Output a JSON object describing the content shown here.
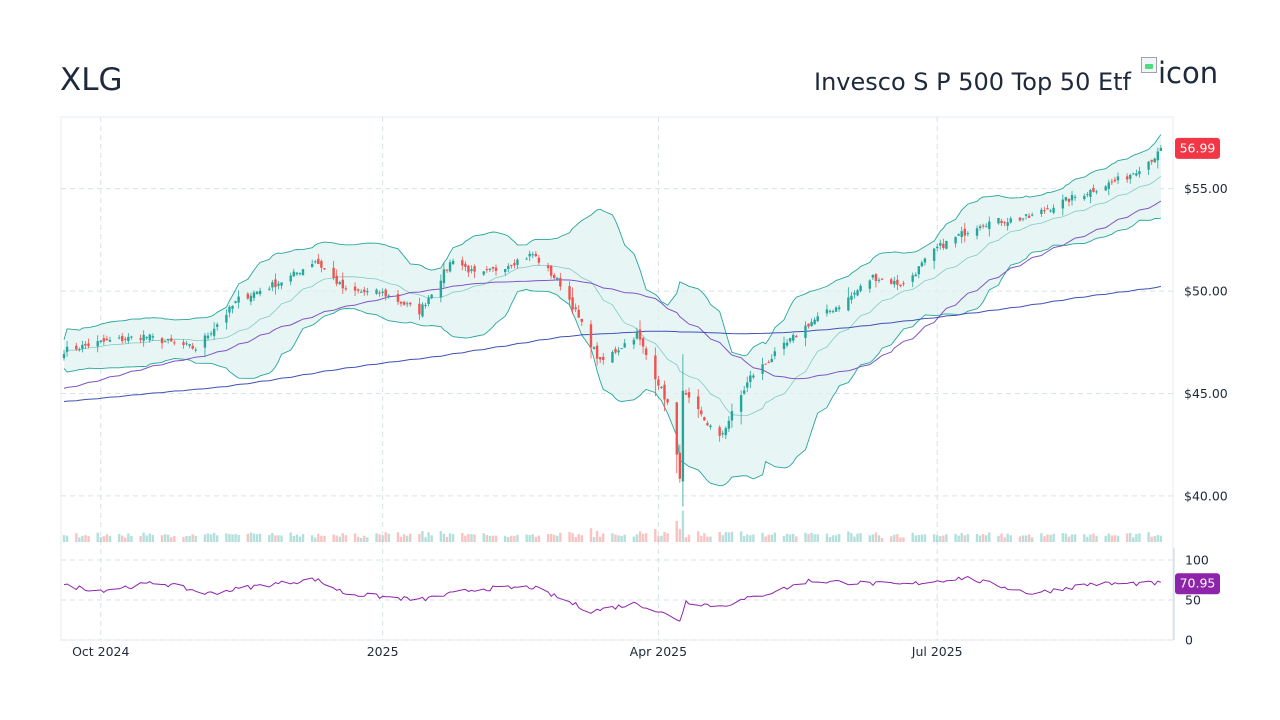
{
  "header": {
    "ticker": "XLG",
    "name": "Invesco S P 500 Top 50 Etf",
    "icon_alt": "icon"
  },
  "colors": {
    "up": "#26a69a",
    "down": "#ef5350",
    "band_fill": "#e0f2f1",
    "band_line": "#26a69a",
    "ma_short": "#7e57c2",
    "ma_long": "#3f51b5",
    "rsi_line": "#8e24aa",
    "last_price_badge": "#f23645",
    "rsi_badge": "#8e24aa",
    "grid": "#d7e3e8"
  },
  "chart_data": {
    "type": "candlestick",
    "x_ticks": [
      "Oct 2024",
      "2025",
      "Apr 2025",
      "Jul 2025"
    ],
    "price_ticks": [
      "$55.00",
      "$50.00",
      "$45.00",
      "$40.00"
    ],
    "price_range": [
      39.8,
      58.5
    ],
    "last_price": "56.99",
    "rsi_ticks": [
      "100",
      "50",
      "0"
    ],
    "rsi_last": "70.95",
    "rsi_range": [
      0,
      100
    ],
    "indicators": [
      "bollinger_bands",
      "moving_average_short",
      "moving_average_long",
      "volume",
      "rsi"
    ],
    "price_anchors": [
      [
        "2024-09-19",
        47.1
      ],
      [
        "2024-10-01",
        47.5
      ],
      [
        "2024-10-15",
        47.8
      ],
      [
        "2024-11-01",
        47.2
      ],
      [
        "2024-11-15",
        49.6
      ],
      [
        "2024-12-01",
        50.6
      ],
      [
        "2024-12-10",
        51.5
      ],
      [
        "2024-12-20",
        50.0
      ],
      [
        "2025-01-01",
        49.9
      ],
      [
        "2025-01-13",
        49.0
      ],
      [
        "2025-01-24",
        51.6
      ],
      [
        "2025-02-01",
        50.7
      ],
      [
        "2025-02-19",
        51.8
      ],
      [
        "2025-03-01",
        50.2
      ],
      [
        "2025-03-13",
        46.5
      ],
      [
        "2025-03-25",
        47.9
      ],
      [
        "2025-04-04",
        44.5
      ],
      [
        "2025-04-08",
        41.0
      ],
      [
        "2025-04-09",
        45.0
      ],
      [
        "2025-04-21",
        42.8
      ],
      [
        "2025-05-01",
        45.8
      ],
      [
        "2025-05-12",
        47.3
      ],
      [
        "2025-05-20",
        48.4
      ],
      [
        "2025-06-01",
        49.5
      ],
      [
        "2025-06-10",
        50.7
      ],
      [
        "2025-06-20",
        50.3
      ],
      [
        "2025-07-01",
        52.1
      ],
      [
        "2025-07-15",
        53.3
      ],
      [
        "2025-07-31",
        53.6
      ],
      [
        "2025-08-10",
        54.3
      ],
      [
        "2025-08-20",
        54.9
      ],
      [
        "2025-09-01",
        55.6
      ],
      [
        "2025-09-14",
        56.99
      ]
    ],
    "rsi_anchors": [
      [
        "2024-09-19",
        68
      ],
      [
        "2024-10-01",
        62
      ],
      [
        "2024-10-20",
        72
      ],
      [
        "2024-11-05",
        58
      ],
      [
        "2024-11-20",
        67
      ],
      [
        "2024-12-10",
        76
      ],
      [
        "2024-12-20",
        58
      ],
      [
        "2025-01-13",
        50
      ],
      [
        "2025-02-01",
        64
      ],
      [
        "2025-02-19",
        66
      ],
      [
        "2025-03-10",
        36
      ],
      [
        "2025-03-25",
        46
      ],
      [
        "2025-04-08",
        25
      ],
      [
        "2025-04-10",
        48
      ],
      [
        "2025-04-21",
        42
      ],
      [
        "2025-05-12",
        64
      ],
      [
        "2025-05-20",
        74
      ],
      [
        "2025-06-20",
        69
      ],
      [
        "2025-07-10",
        78
      ],
      [
        "2025-08-01",
        58
      ],
      [
        "2025-08-20",
        70
      ],
      [
        "2025-09-14",
        71
      ]
    ]
  }
}
